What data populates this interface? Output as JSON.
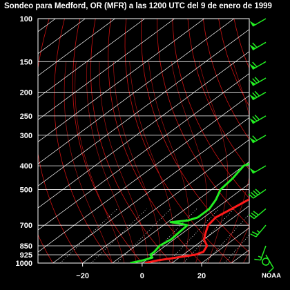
{
  "title": "Sondeo para Medford, OR (MFR) a las 1200 UTC del 9 de enero de 1999",
  "credit": "NOAA",
  "colors": {
    "background": "#000000",
    "temperature": "#ff1a1a",
    "dewpoint": "#22ee22",
    "isobar": "#ffffff",
    "isotherm": "#ffffff",
    "dry_adiabat": "#cc1111",
    "moist_adiabat": "#aa1111",
    "mixing_ratio": "#ffffff",
    "wind_barb": "#22ee22"
  },
  "chart_data": {
    "type": "line",
    "title": "Sondeo para Medford, OR (MFR) a las 1200 UTC del 9 de enero de 1999",
    "xlabel": "",
    "ylabel": "",
    "y_scale": "log-pressure",
    "pressure_ticks": [
      "100",
      "150",
      "200",
      "250",
      "300",
      "400",
      "500",
      "700",
      "850",
      "925",
      "1000"
    ],
    "temperature_ticks": [
      "−20",
      "0",
      "20"
    ],
    "temperature_tick_values": [
      -20,
      0,
      20
    ],
    "xlim": [
      -35,
      36
    ],
    "ylim": [
      1000,
      100
    ],
    "series": [
      {
        "key": "temperature",
        "points": [
          [
            1000,
            1
          ],
          [
            975,
            4
          ],
          [
            925,
            14
          ],
          [
            900,
            15.5
          ],
          [
            850,
            14
          ],
          [
            800,
            10
          ],
          [
            750,
            7.5
          ],
          [
            700,
            5
          ],
          [
            650,
            4
          ],
          [
            600,
            5.5
          ],
          [
            550,
            7
          ],
          [
            500,
            6
          ],
          [
            450,
            2.5
          ],
          [
            400,
            -2.5
          ],
          [
            350,
            -8
          ],
          [
            300,
            -14
          ],
          [
            250,
            -21
          ],
          [
            200,
            -29
          ],
          [
            180,
            -33
          ],
          [
            170,
            -33
          ],
          [
            165,
            -31
          ],
          [
            150,
            -24
          ],
          [
            130,
            -20
          ],
          [
            100,
            -1
          ]
        ]
      },
      {
        "key": "dewpoint",
        "points": [
          [
            1000,
            -4
          ],
          [
            975,
            -1
          ],
          [
            950,
            1
          ],
          [
            925,
            -1
          ],
          [
            900,
            -1
          ],
          [
            850,
            -2
          ],
          [
            800,
            -1
          ],
          [
            750,
            -1.5
          ],
          [
            700,
            -2
          ],
          [
            690,
            -5
          ],
          [
            680,
            -9
          ],
          [
            670,
            -4
          ],
          [
            650,
            -2
          ],
          [
            600,
            -2
          ],
          [
            550,
            -4
          ],
          [
            500,
            -7
          ],
          [
            450,
            -8
          ],
          [
            400,
            -10
          ],
          [
            370,
            -6
          ],
          [
            350,
            -10
          ],
          [
            300,
            -17
          ],
          [
            250,
            -24
          ],
          [
            200,
            -33
          ],
          [
            180,
            -38
          ],
          [
            175,
            -38
          ],
          [
            165,
            -32
          ],
          [
            150,
            -27
          ],
          [
            130,
            -23
          ],
          [
            100,
            -6
          ]
        ]
      }
    ],
    "wind_barbs": [
      {
        "p": 1000,
        "dir": 0,
        "spd": 0
      },
      {
        "p": 925,
        "dir": 150,
        "spd": 10
      },
      {
        "p": 850,
        "dir": 200,
        "spd": 15
      },
      {
        "p": 700,
        "dir": 220,
        "spd": 25
      },
      {
        "p": 600,
        "dir": 230,
        "spd": 30
      },
      {
        "p": 500,
        "dir": 235,
        "spd": 40
      },
      {
        "p": 400,
        "dir": 240,
        "spd": 50
      },
      {
        "p": 300,
        "dir": 240,
        "spd": 60
      },
      {
        "p": 250,
        "dir": 240,
        "spd": 70
      },
      {
        "p": 200,
        "dir": 240,
        "spd": 70
      },
      {
        "p": 175,
        "dir": 240,
        "spd": 70
      },
      {
        "p": 150,
        "dir": 240,
        "spd": 60
      },
      {
        "p": 125,
        "dir": 240,
        "spd": 60
      },
      {
        "p": 100,
        "dir": 240,
        "spd": 50
      }
    ]
  }
}
